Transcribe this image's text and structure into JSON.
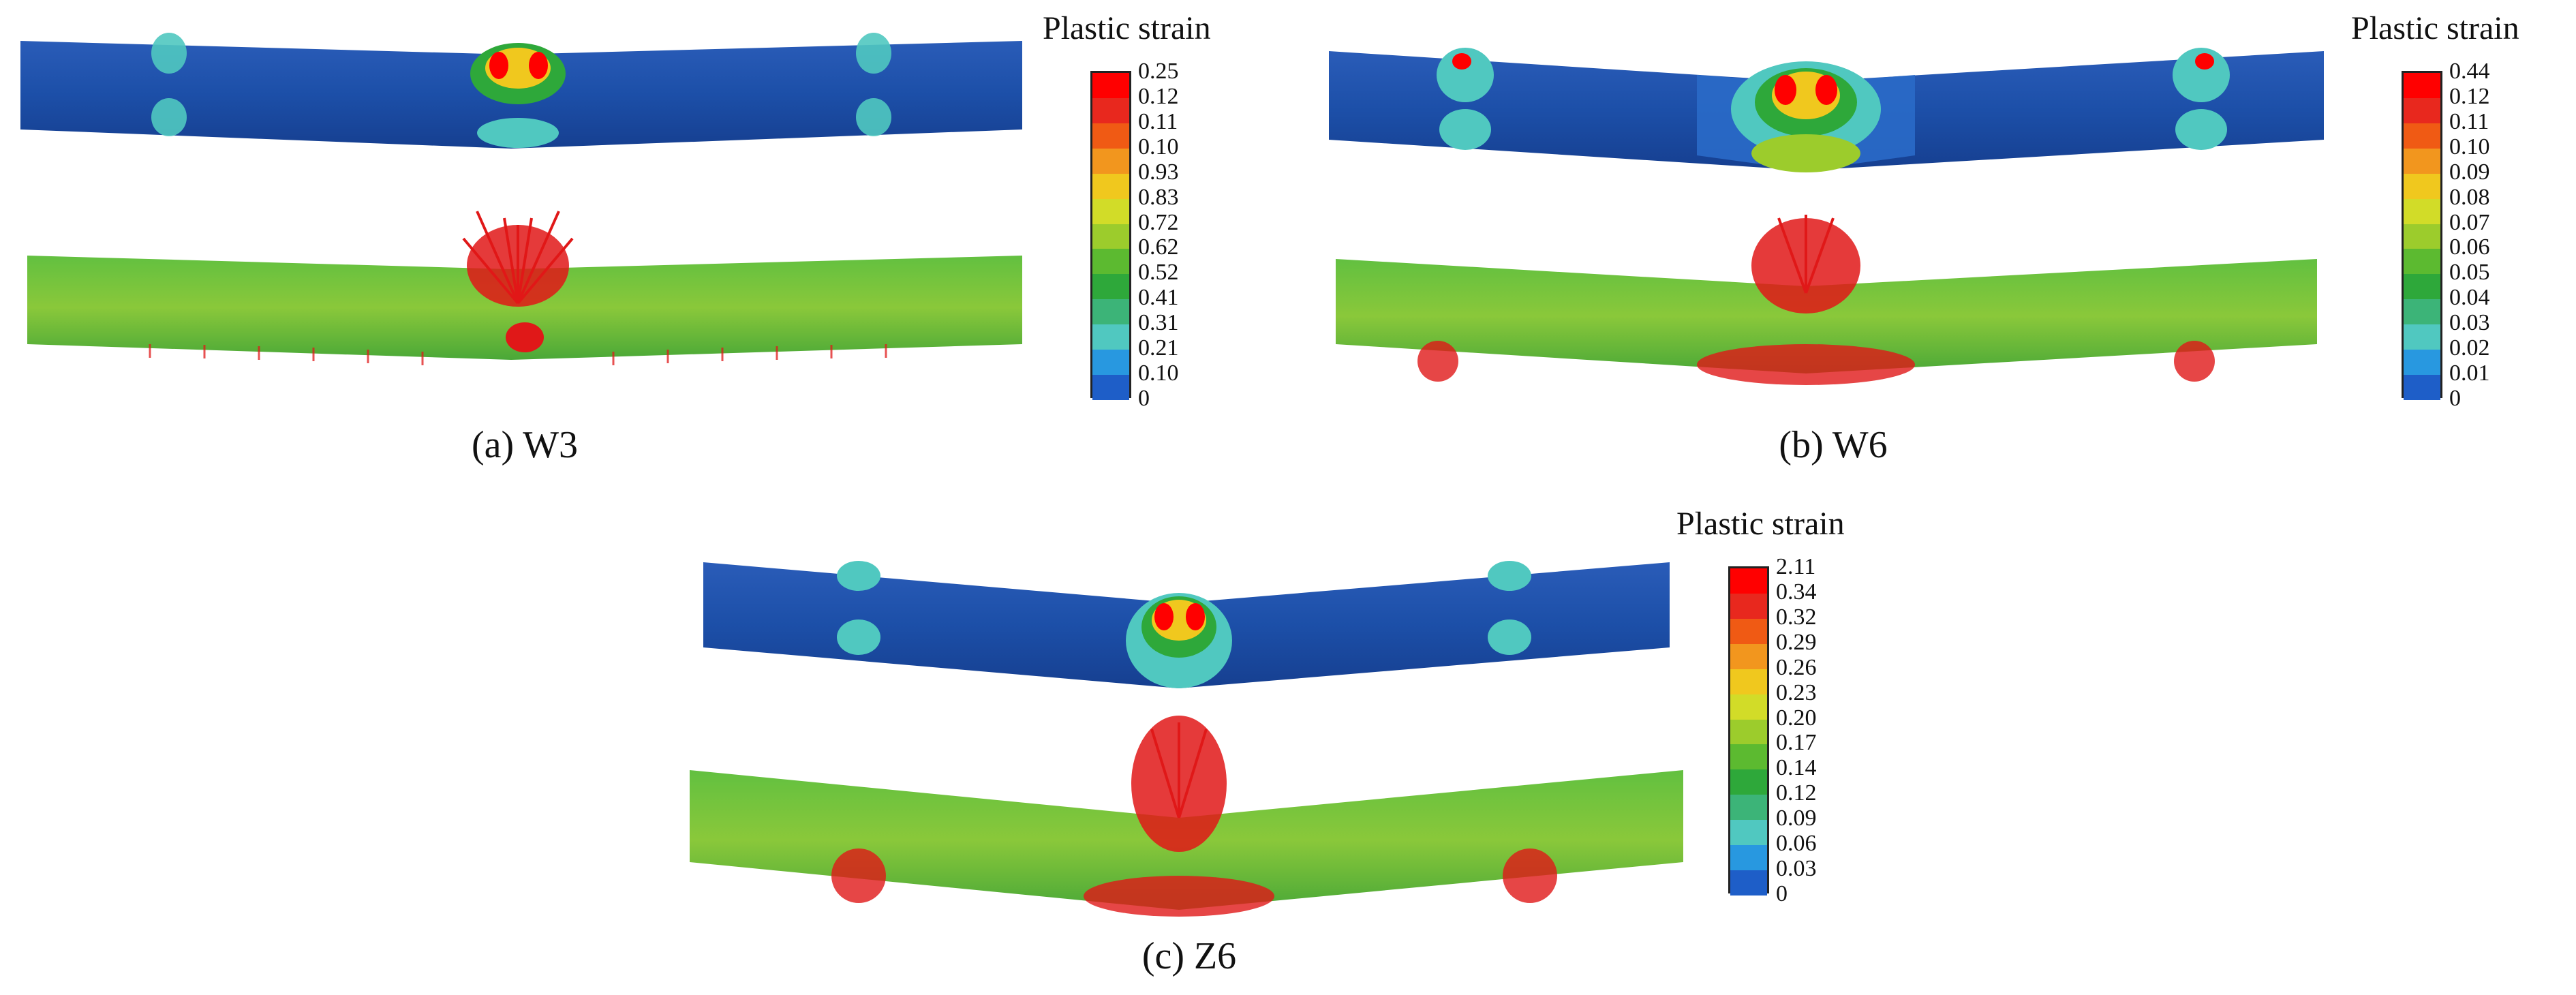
{
  "legend_title": "Plastic strain",
  "colors": {
    "scale": [
      "#ff0000",
      "#e8281e",
      "#f05a14",
      "#f2961e",
      "#f0c81e",
      "#d2dc28",
      "#9ccc2c",
      "#5cba30",
      "#2ea83a",
      "#3cb478",
      "#50c8c0",
      "#2898e0",
      "#1e5ec8",
      "#14358c"
    ],
    "tube_blue": "#1c4fa8",
    "tube_green": "#52b43a",
    "arrow": "#e01818"
  },
  "panels": [
    {
      "id": "W3",
      "caption": "(a) W3",
      "legend_labels": [
        "0.25",
        "0.12",
        "0.11",
        "0.10",
        "0.93",
        "0.83",
        "0.72",
        "0.62",
        "0.52",
        "0.41",
        "0.31",
        "0.21",
        "0.10",
        "0"
      ]
    },
    {
      "id": "W6",
      "caption": "(b) W6",
      "legend_labels": [
        "0.44",
        "0.12",
        "0.11",
        "0.10",
        "0.09",
        "0.08",
        "0.07",
        "0.06",
        "0.05",
        "0.04",
        "0.03",
        "0.02",
        "0.01",
        "0"
      ]
    },
    {
      "id": "Z6",
      "caption": "(c) Z6",
      "legend_labels": [
        "2.11",
        "0.34",
        "0.32",
        "0.29",
        "0.26",
        "0.23",
        "0.20",
        "0.17",
        "0.14",
        "0.12",
        "0.09",
        "0.06",
        "0.03",
        "0"
      ]
    }
  ]
}
